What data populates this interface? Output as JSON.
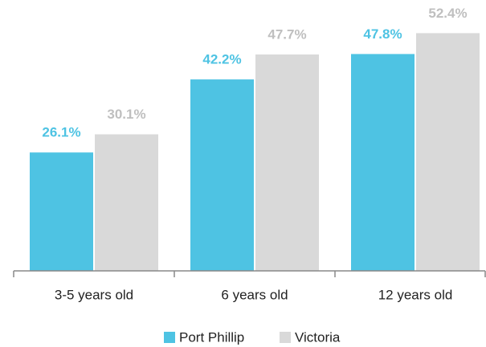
{
  "chart_data": {
    "type": "bar",
    "categories": [
      "3-5 years old",
      "6 years old",
      "12 years old"
    ],
    "series": [
      {
        "name": "Port Phillip",
        "color": "#4ec3e3",
        "label_color": "#4ec3e3",
        "values": [
          26.1,
          42.2,
          47.8
        ],
        "value_labels": [
          "26.1%",
          "42.2%",
          "47.8%"
        ]
      },
      {
        "name": "Victoria",
        "color": "#d9d9d9",
        "label_color": "#bfbfbf",
        "values": [
          30.1,
          47.7,
          52.4
        ],
        "value_labels": [
          "30.1%",
          "47.7%",
          "52.4%"
        ]
      }
    ],
    "ylim": [
      0,
      59
    ],
    "legend": "bottom"
  }
}
